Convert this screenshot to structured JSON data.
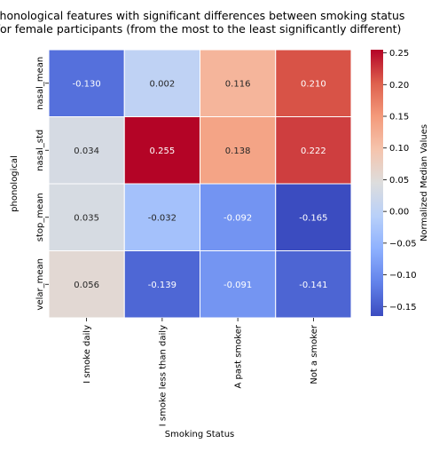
{
  "chart_data": {
    "type": "heatmap",
    "title_lines": [
      "phonological features with significant differences between smoking status",
      "for female participants (from the most to the least significantly different)"
    ],
    "xlabel": "Smoking Status",
    "ylabel": "phonological",
    "x_categories": [
      "I smoke daily",
      "I smoke less than daily",
      "A past smoker",
      "Not a smoker"
    ],
    "y_categories": [
      "nasal_mean",
      "nasal_std",
      "stop_mean",
      "velar_mean"
    ],
    "values": [
      [
        -0.13,
        0.002,
        0.116,
        0.21
      ],
      [
        0.034,
        0.255,
        0.138,
        0.222
      ],
      [
        0.035,
        -0.032,
        -0.092,
        -0.165
      ],
      [
        0.056,
        -0.139,
        -0.091,
        -0.141
      ]
    ],
    "value_labels": [
      [
        "-0.130",
        "0.002",
        "0.116",
        "0.210"
      ],
      [
        "0.034",
        "0.255",
        "0.138",
        "0.222"
      ],
      [
        "0.035",
        "-0.032",
        "-0.092",
        "-0.165"
      ],
      [
        "0.056",
        "-0.139",
        "-0.091",
        "-0.141"
      ]
    ],
    "colormap": "coolwarm",
    "vmin": -0.165,
    "vmax": 0.255,
    "colorbar": {
      "label": "Normalized Median Values",
      "ticks": [
        0.25,
        0.2,
        0.15,
        0.1,
        0.05,
        0.0,
        -0.05,
        -0.1,
        -0.15
      ],
      "tick_labels": [
        "0.25",
        "0.20",
        "0.15",
        "0.10",
        "0.05",
        "0.00",
        "−0.05",
        "−0.10",
        "−0.15"
      ],
      "placement": "right"
    },
    "grid": false
  }
}
